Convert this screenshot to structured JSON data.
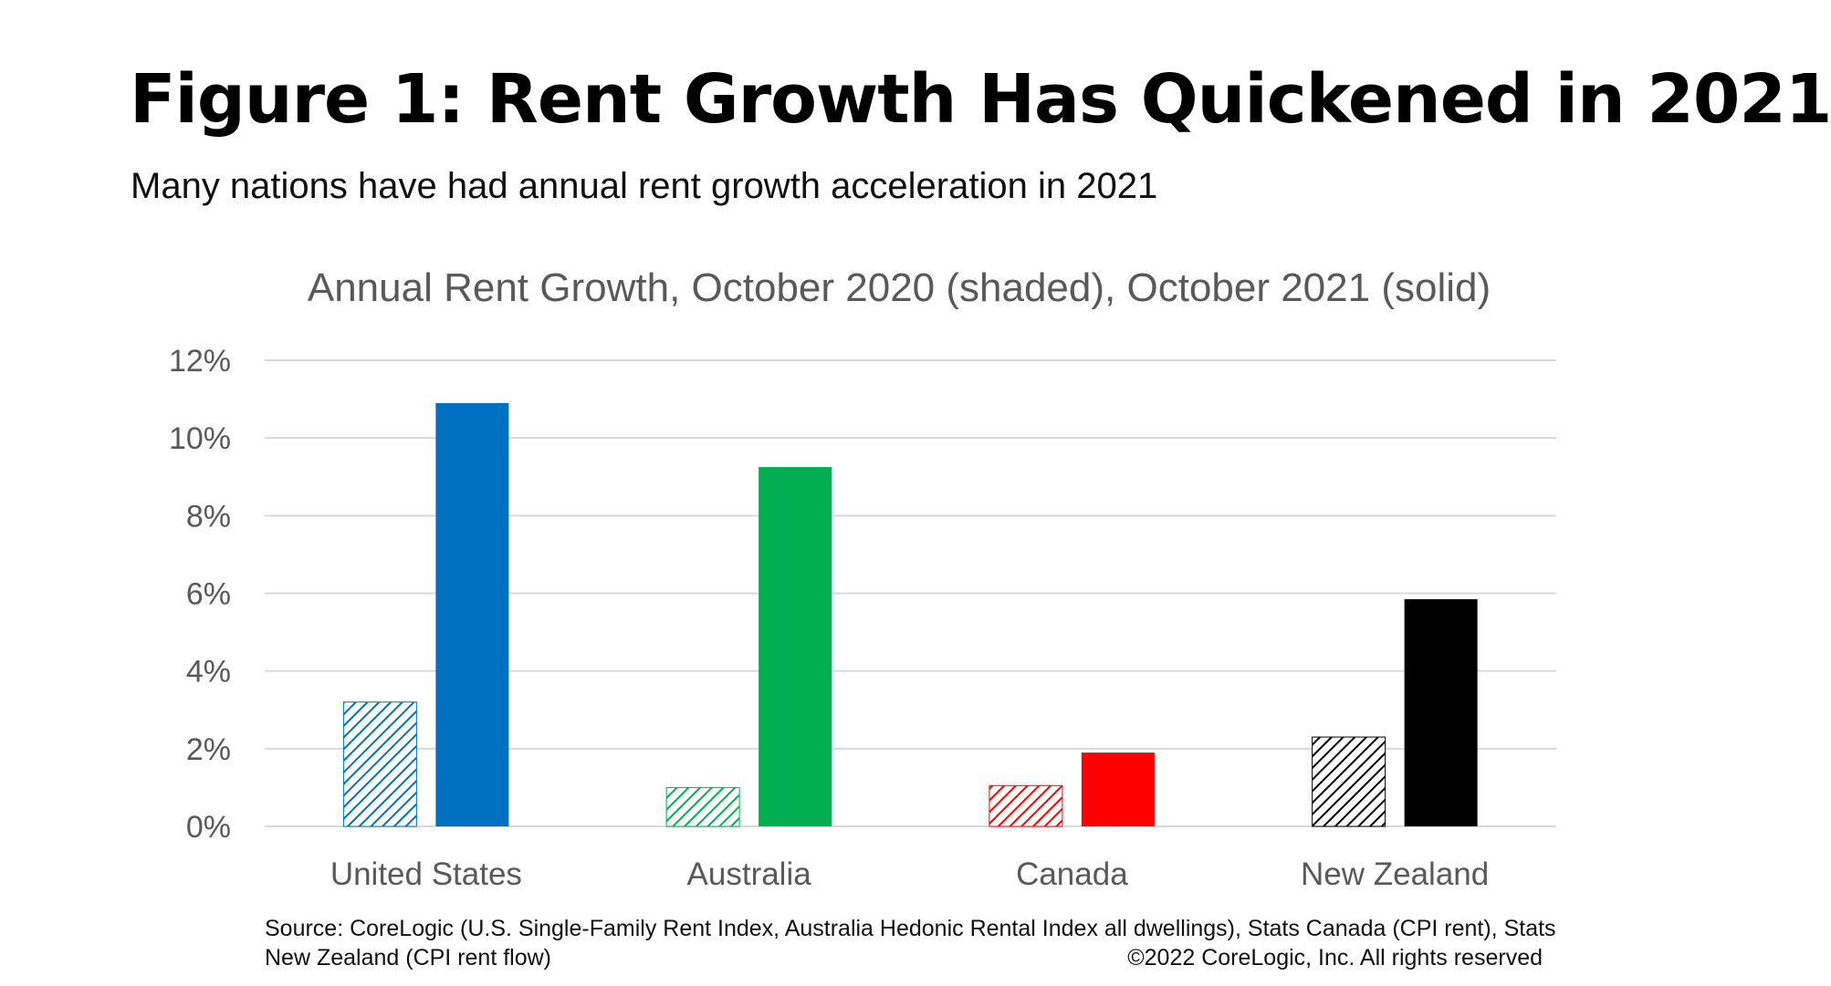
{
  "header": {
    "title": "Figure 1: Rent Growth Has Quickened in 2021",
    "subtitle": "Many nations have had annual rent growth acceleration in 2021"
  },
  "chart_data": {
    "type": "bar",
    "title": "Annual Rent Growth, October 2020 (shaded), October 2021 (solid)",
    "xlabel": "",
    "ylabel": "",
    "categories": [
      "United States",
      "Australia",
      "Canada",
      "New Zealand"
    ],
    "series": [
      {
        "values": [
          3.2,
          1.0,
          1.05,
          2.3
        ],
        "style": "shaded"
      },
      {
        "values": [
          10.9,
          9.25,
          1.9,
          5.85
        ],
        "style": "solid"
      }
    ],
    "category_colors": [
      "#0070C0",
      "#00B050",
      "#FF0000",
      "#000000"
    ],
    "ylim": [
      0,
      12
    ],
    "yticks": [
      0,
      2,
      4,
      6,
      8,
      10,
      12
    ],
    "ytick_labels": [
      "0%",
      "2%",
      "4%",
      "6%",
      "8%",
      "10%",
      "12%"
    ],
    "grid": true,
    "legend": "none"
  },
  "footer": {
    "source_line1": "Source: CoreLogic (U.S. Single-Family Rent Index, Australia Hedonic Rental Index all dwellings), Stats Canada (CPI rent), Stats",
    "source_line2": "New Zealand (CPI rent flow)",
    "copyright": "©2022 CoreLogic, Inc.  All rights reserved"
  }
}
